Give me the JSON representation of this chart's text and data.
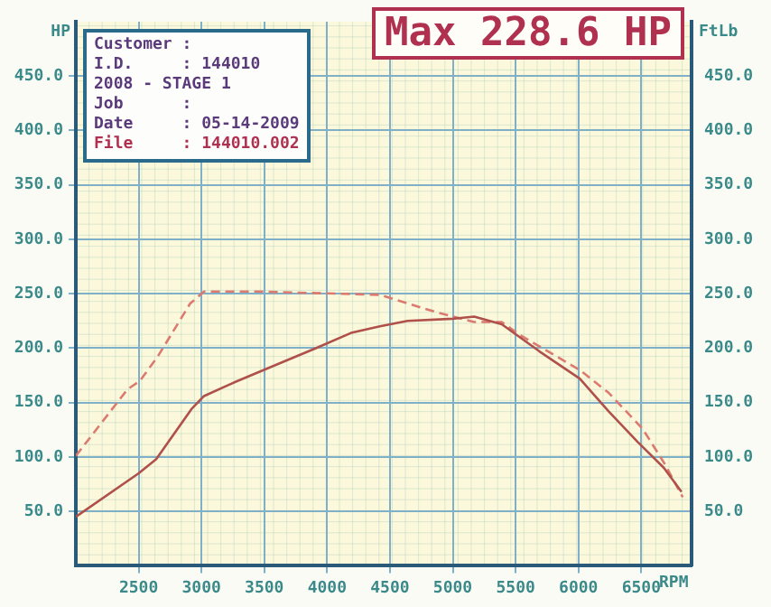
{
  "chart_data": {
    "type": "line",
    "title": "Max 228.6 HP",
    "xlabel": "RPM",
    "ylabel": "HP",
    "y2label": "FtLb",
    "xlim": [
      2000,
      6900
    ],
    "xticks": [
      2500,
      3000,
      3500,
      4000,
      4500,
      5000,
      5500,
      6000,
      6500
    ],
    "ylim": [
      0,
      500
    ],
    "yticks": [
      {
        "value": 50,
        "label": "50.0"
      },
      {
        "value": 100,
        "label": "100.0"
      },
      {
        "value": 150,
        "label": "150.0"
      },
      {
        "value": 200,
        "label": "200.0"
      },
      {
        "value": 250,
        "label": "250.0"
      },
      {
        "value": 300,
        "label": "300.0"
      },
      {
        "value": 350,
        "label": "350.0"
      },
      {
        "value": 400,
        "label": "400.0"
      },
      {
        "value": 450,
        "label": "450.0"
      }
    ],
    "y2lim": [
      0,
      500
    ],
    "y2ticks": [
      {
        "value": 50,
        "label": "50.0"
      },
      {
        "value": 100,
        "label": "100.0"
      },
      {
        "value": 150,
        "label": "150.0"
      },
      {
        "value": 200,
        "label": "200.0"
      },
      {
        "value": 250,
        "label": "250.0"
      },
      {
        "value": 300,
        "label": "300.0"
      },
      {
        "value": 350,
        "label": "350.0"
      },
      {
        "value": 400,
        "label": "400.0"
      },
      {
        "value": 450,
        "label": "450.0"
      }
    ],
    "grid": true,
    "marker": "none",
    "series": [
      {
        "color": "#b0504a",
        "line_style": "solid",
        "x": [
          2000,
          2500,
          2640,
          2920,
          3020,
          3270,
          3600,
          3910,
          4190,
          4420,
          4640,
          5000,
          5170,
          5390,
          5690,
          6010,
          6240,
          6470,
          6680,
          6820
        ],
        "values": [
          45,
          85,
          98,
          144,
          156,
          169,
          185,
          200,
          214,
          220,
          225,
          227,
          229,
          222,
          197,
          172,
          142,
          114,
          90,
          68
        ]
      },
      {
        "color": "#dc7a70",
        "line_style": "dashed",
        "axis": "y2",
        "x": [
          2000,
          2410,
          2510,
          2650,
          2910,
          3020,
          3460,
          4420,
          4870,
          5170,
          5390,
          5550,
          6010,
          6240,
          6510,
          6690,
          6830
        ],
        "values": [
          101,
          162,
          170,
          192,
          241,
          252,
          252,
          249,
          233,
          224,
          224,
          211,
          180,
          159,
          126,
          93,
          63
        ]
      }
    ],
    "annotations": [
      "Customer :",
      "I.D.     : 144010",
      "2008 - STAGE 1",
      "Job      :",
      "Date     : 05-14-2009",
      "File     : 144010.002"
    ]
  }
}
